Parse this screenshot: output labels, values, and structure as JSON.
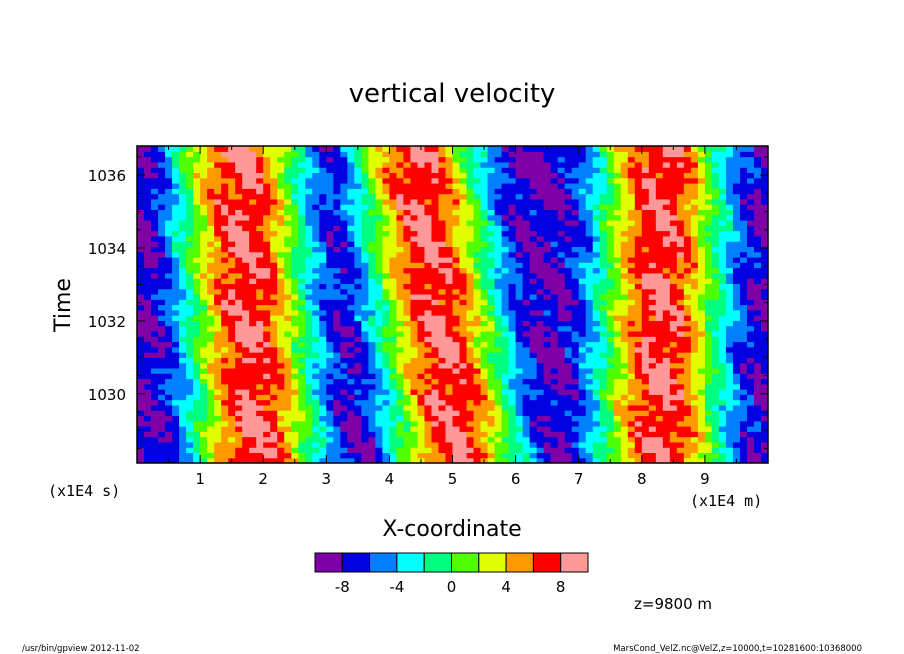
{
  "chart_data": {
    "type": "heatmap",
    "title": "vertical velocity",
    "xlabel": "X-coordinate",
    "ylabel": "Time",
    "x_unit_label": "(x1E4 m)",
    "y_unit_label": "(x1E4 s)",
    "xlim": [
      0,
      10
    ],
    "ylim": [
      1028.1,
      1036.8
    ],
    "x_ticks": [
      1,
      2,
      3,
      4,
      5,
      6,
      7,
      8,
      9
    ],
    "y_ticks": [
      1030,
      1032,
      1034,
      1036
    ],
    "colorbar": {
      "colors": [
        "#8000a8",
        "#0000e0",
        "#0080ff",
        "#00ffff",
        "#00ff80",
        "#50ff00",
        "#e0ff00",
        "#ff9900",
        "#ff0000",
        "#ff9999"
      ],
      "boundaries": [
        -10,
        -8,
        -6,
        -4,
        -2,
        0,
        2,
        4,
        6,
        8,
        10
      ],
      "labels": [
        "-8",
        "-4",
        "0",
        "4",
        "8"
      ],
      "label_values": [
        -8,
        -4,
        0,
        4,
        8
      ]
    },
    "bands": {
      "positive_peaks_x_at_bottom": [
        1.9,
        5.1,
        8.3
      ],
      "positive_peaks_x_at_top": [
        1.6,
        4.4,
        8.3
      ],
      "negative_peaks_x_at_bottom": [
        0.3,
        3.3,
        6.7
      ],
      "negative_peaks_x_at_top": [
        3.0,
        6.3,
        9.6
      ],
      "min_value": -8,
      "max_value": 8
    },
    "annotation": "z=9800  m"
  },
  "footer": {
    "left": "/usr/bin/gpview   2012-11-02",
    "right": "MarsCond_VelZ.nc@VelZ,z=10000,t=10281600:10368000"
  }
}
